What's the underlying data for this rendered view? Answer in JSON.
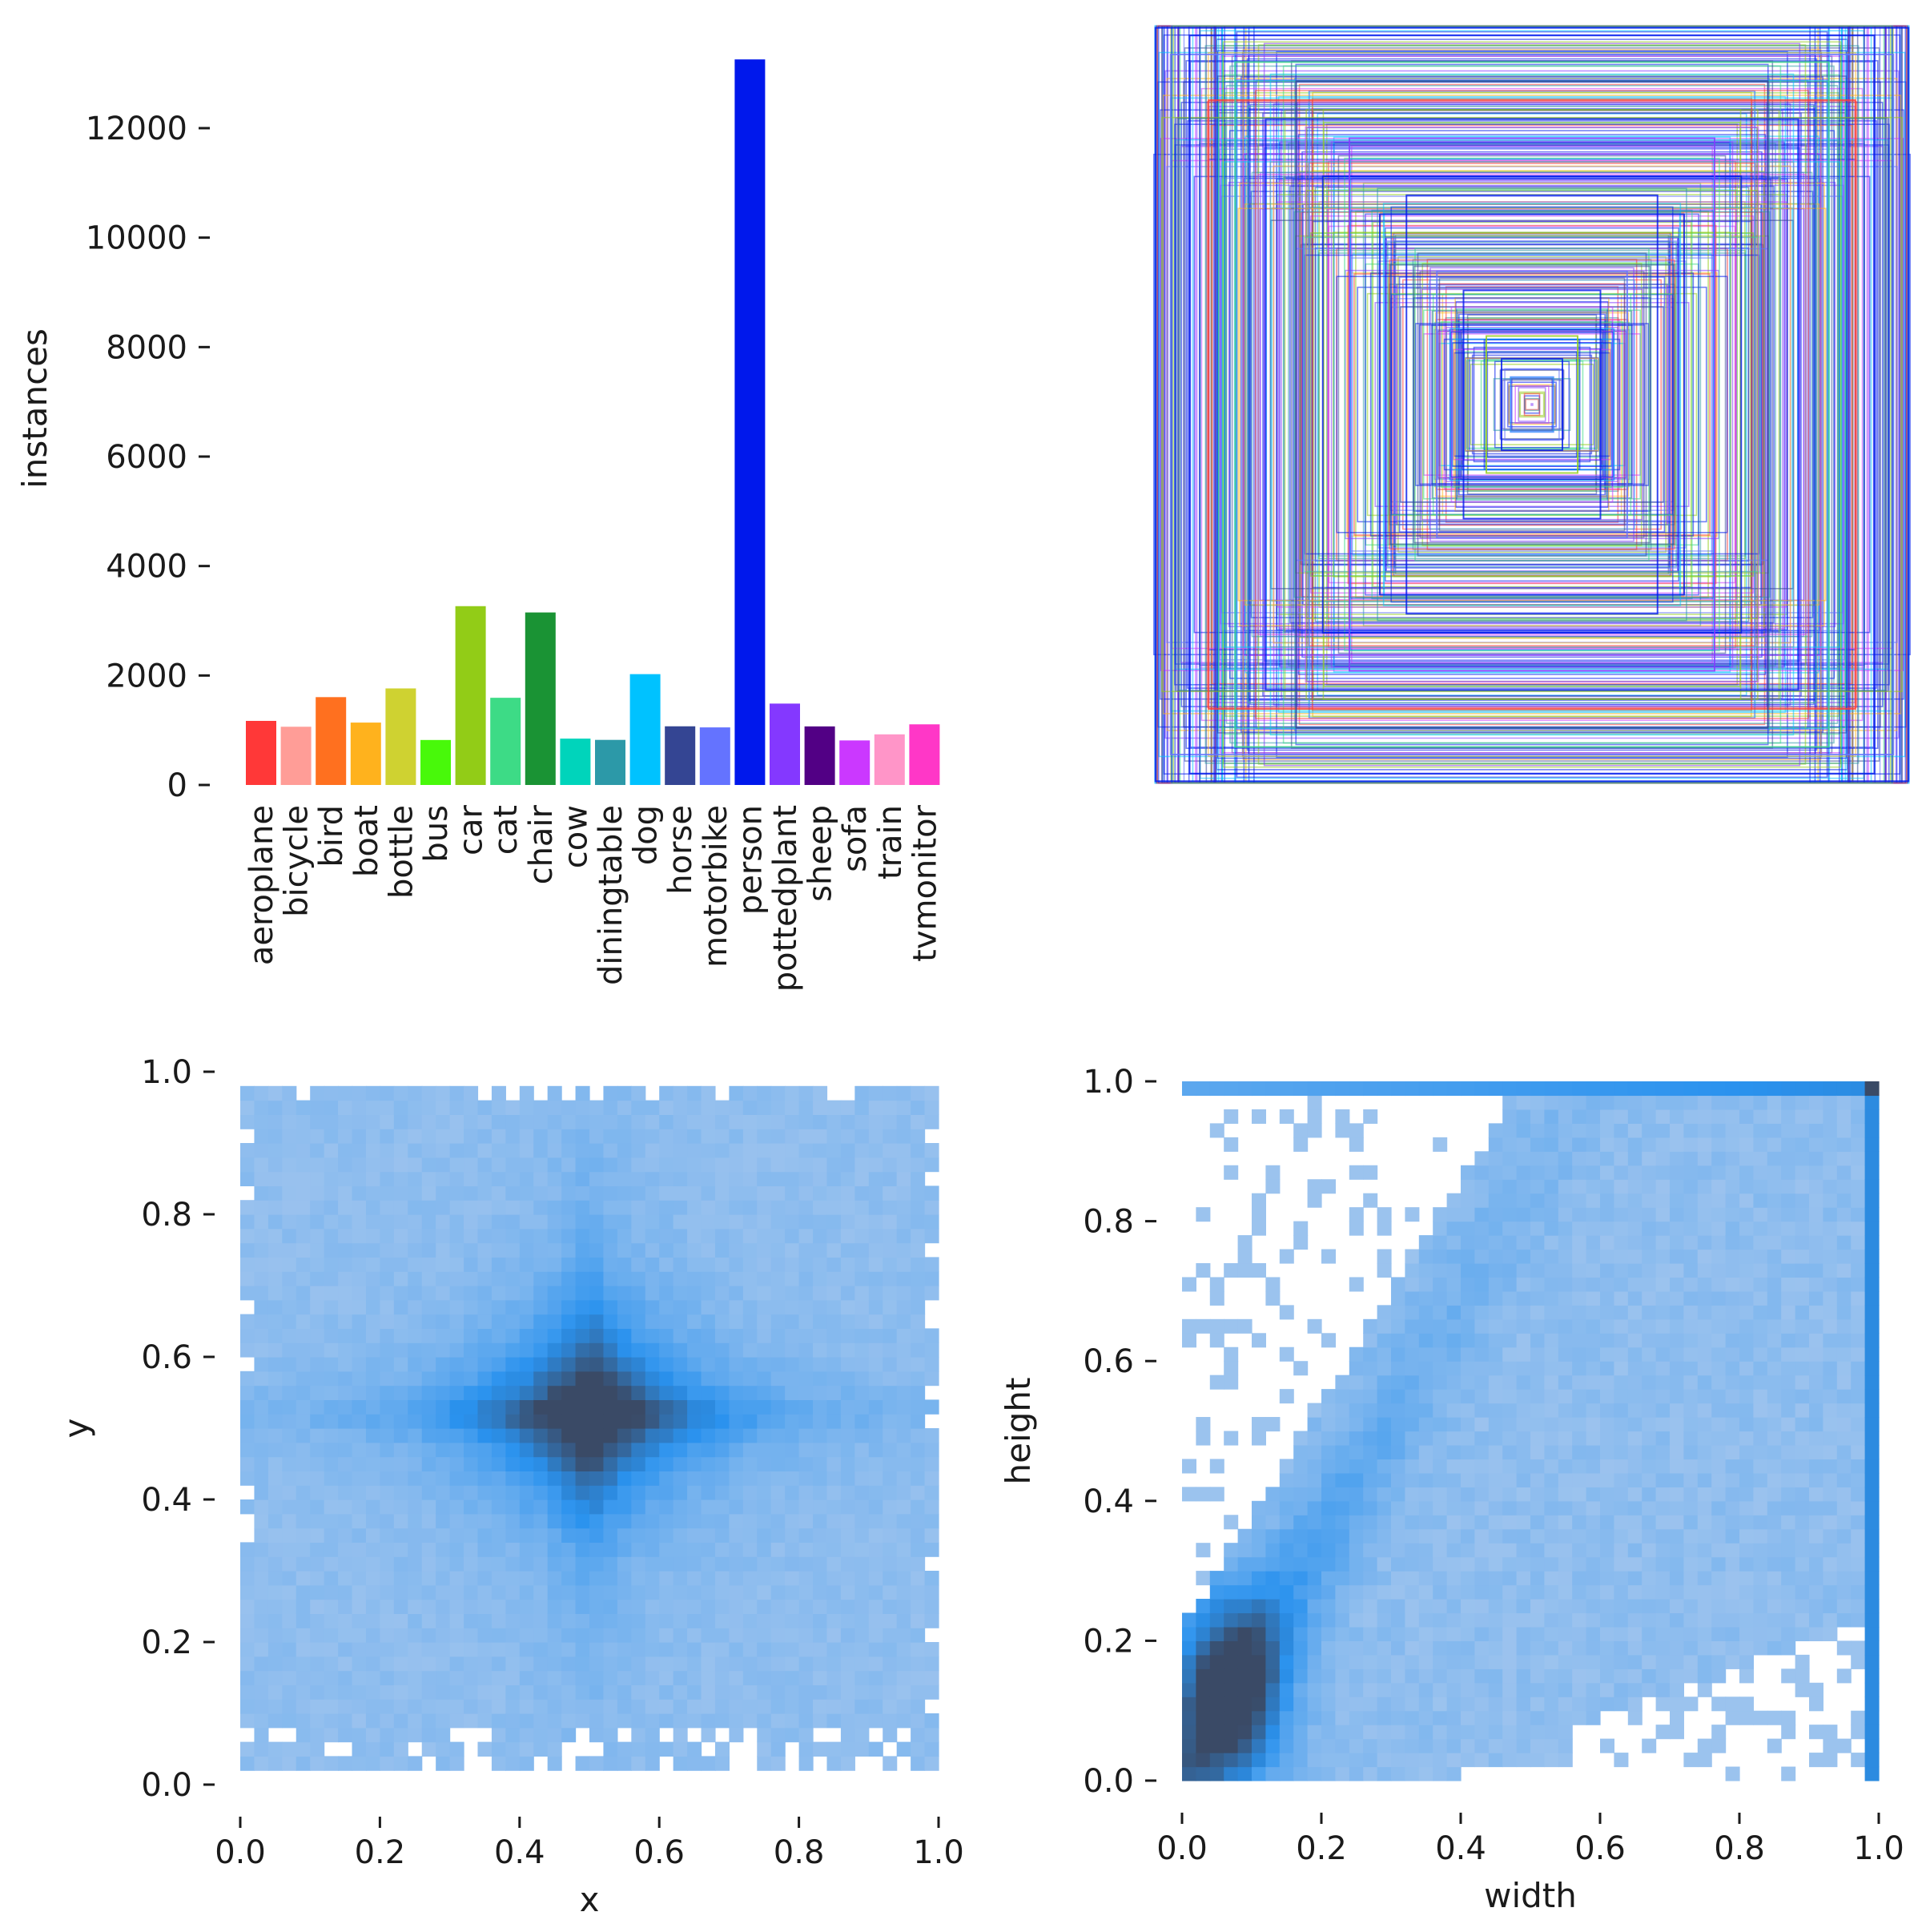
{
  "chart_data": [
    {
      "type": "bar",
      "title": "",
      "xlabel": "",
      "ylabel": "instances",
      "ylim": [
        0,
        13500
      ],
      "yticks": [
        0,
        2000,
        4000,
        6000,
        8000,
        10000,
        12000
      ],
      "yticklabels": [
        "0",
        "2000",
        "4000",
        "6000",
        "8000",
        "10000",
        "12000"
      ],
      "categories": [
        "aeroplane",
        "bicycle",
        "bird",
        "boat",
        "bottle",
        "bus",
        "car",
        "cat",
        "chair",
        "cow",
        "diningtable",
        "dog",
        "horse",
        "motorbike",
        "person",
        "pottedplant",
        "sheep",
        "sofa",
        "train",
        "tvmonitor"
      ],
      "values": [
        1171,
        1064,
        1605,
        1140,
        1764,
        822,
        3267,
        1593,
        3152,
        847,
        824,
        2025,
        1072,
        1052,
        13256,
        1487,
        1070,
        814,
        925,
        1108
      ],
      "colors": [
        "#ff3838",
        "#ff9d97",
        "#ff701f",
        "#ffb21d",
        "#cfd231",
        "#48f90a",
        "#92cc17",
        "#3ddb86",
        "#1a9334",
        "#00d4bb",
        "#2c99a8",
        "#00c2ff",
        "#344593",
        "#6473ff",
        "#0018ec",
        "#8438ff",
        "#520085",
        "#cb38ff",
        "#ff95c8",
        "#ff37c7"
      ]
    },
    {
      "type": "box_overlay",
      "title": "",
      "xlabel": "",
      "ylabel": "",
      "description_boxes": [
        {
          "w": 0.99,
          "h": 0.99,
          "color": "#0018ec"
        },
        {
          "w": 0.95,
          "h": 0.92,
          "color": "#6473ff"
        },
        {
          "w": 0.9,
          "h": 0.97,
          "color": "#0018ec"
        },
        {
          "w": 0.85,
          "h": 0.8,
          "color": "#ff3838"
        },
        {
          "w": 0.78,
          "h": 0.9,
          "color": "#3ddb86"
        },
        {
          "w": 0.7,
          "h": 0.75,
          "color": "#0018ec"
        },
        {
          "w": 0.62,
          "h": 0.85,
          "color": "#344593"
        },
        {
          "w": 0.55,
          "h": 0.6,
          "color": "#0018ec"
        },
        {
          "w": 0.48,
          "h": 0.7,
          "color": "#8438ff"
        },
        {
          "w": 0.4,
          "h": 0.5,
          "color": "#0018ec"
        },
        {
          "w": 0.33,
          "h": 0.55,
          "color": "#0018ec"
        },
        {
          "w": 0.25,
          "h": 0.35,
          "color": "#6473ff"
        },
        {
          "w": 0.18,
          "h": 0.3,
          "color": "#0018ec"
        },
        {
          "w": 0.12,
          "h": 0.18,
          "color": "#92cc17"
        },
        {
          "w": 0.08,
          "h": 0.12,
          "color": "#0018ec"
        }
      ]
    },
    {
      "type": "heatmap",
      "title": "",
      "xlabel": "x",
      "ylabel": "y",
      "xlim": [
        0.0,
        1.0
      ],
      "ylim": [
        0.0,
        1.0
      ],
      "xticks": [
        0.0,
        0.2,
        0.4,
        0.6,
        0.8,
        1.0
      ],
      "yticks": [
        0.0,
        0.2,
        0.4,
        0.6,
        0.8,
        1.0
      ],
      "xticklabels": [
        "0.0",
        "0.2",
        "0.4",
        "0.6",
        "0.8",
        "1.0"
      ],
      "yticklabels": [
        "0.0",
        "0.2",
        "0.4",
        "0.6",
        "0.8",
        "1.0"
      ],
      "bins": 50,
      "pattern": "star centered at (0.5, 0.5), light elsewhere"
    },
    {
      "type": "heatmap",
      "title": "",
      "xlabel": "width",
      "ylabel": "height",
      "xlim": [
        0.0,
        1.0
      ],
      "ylim": [
        0.0,
        1.0
      ],
      "xticks": [
        0.0,
        0.2,
        0.4,
        0.6,
        0.8,
        1.0
      ],
      "yticks": [
        0.0,
        0.2,
        0.4,
        0.6,
        0.8,
        1.0
      ],
      "xticklabels": [
        "0.0",
        "0.2",
        "0.4",
        "0.6",
        "0.8",
        "1.0"
      ],
      "yticklabels": [
        "0.0",
        "0.2",
        "0.4",
        "0.6",
        "0.8",
        "1.0"
      ],
      "bins": 50,
      "pattern": "dense near (0.07, 0.13), diagonal band, dark at (1.0, 1.0)"
    }
  ],
  "colors": {
    "heat_light": "#a8c8ee",
    "heat_mid": "#2a92ee",
    "heat_dark": "#3a4a66",
    "text": "#1a1a1a"
  }
}
